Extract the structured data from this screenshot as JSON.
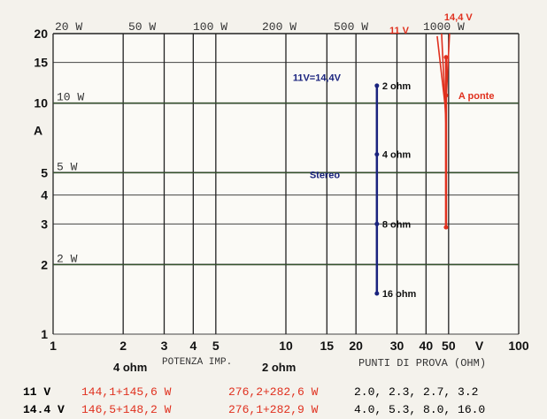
{
  "chart_data": {
    "type": "line",
    "x_scale": "log",
    "y_scale": "log",
    "xlim": [
      1,
      100
    ],
    "ylim": [
      1,
      20
    ],
    "x_ticks": [
      "1",
      "2",
      "3",
      "4",
      "5",
      "10",
      "15",
      "20",
      "30",
      "40",
      "50",
      "100"
    ],
    "x_tick_values": [
      1,
      2,
      3,
      4,
      5,
      10,
      15,
      20,
      30,
      40,
      50,
      100
    ],
    "x_unit": "V",
    "y_ticks": [
      "1",
      "2",
      "3",
      "4",
      "5",
      "10",
      "15",
      "20"
    ],
    "y_tick_values": [
      1,
      2,
      3,
      4,
      5,
      10,
      15,
      20
    ],
    "ylabel": "A",
    "power_lines": [
      {
        "label": "2 W",
        "value": 2
      },
      {
        "label": "5 W",
        "value": 5
      },
      {
        "label": "10 W",
        "value": 10
      },
      {
        "label": "20 W",
        "value": 20
      },
      {
        "label": "50 W",
        "value": 50
      },
      {
        "label": "100 W",
        "value": 100
      },
      {
        "label": "200 W",
        "value": 200
      },
      {
        "label": "500 W",
        "value": 500
      },
      {
        "label": "1000 W",
        "value": 1000
      }
    ],
    "series": [
      {
        "name": "Stereo",
        "color": "#1a237e",
        "points": [
          {
            "x": 24.6,
            "y": 11.9,
            "label": "2 ohm"
          },
          {
            "x": 24.6,
            "y": 6.0,
            "label": "4 ohm"
          },
          {
            "x": 24.6,
            "y": 3.0,
            "label": "8 ohm"
          },
          {
            "x": 24.6,
            "y": 1.5,
            "label": "16 ohm"
          }
        ]
      },
      {
        "name": "A ponte",
        "color": "#e0301e",
        "points": [
          {
            "x": 47.9,
            "y": 10.8
          },
          {
            "x": 48.5,
            "y": 15.8
          },
          {
            "x": 48.5,
            "y": 2.9
          }
        ]
      }
    ],
    "annotations": [
      {
        "text": "11V=14,4V",
        "color": "#1a237e"
      },
      {
        "text": "14,4 V",
        "color": "#e0301e"
      },
      {
        "text": "11 V",
        "color": "#e0301e"
      }
    ]
  },
  "table": {
    "headers": {
      "col1": "4 ohm",
      "potenza": "POTENZA IMP.",
      "col2": "2 ohm",
      "punti": "PUNTI DI PROVA (OHM)"
    },
    "rows": [
      {
        "label": "11 V",
        "v4": "144,1+145,6 W",
        "v2": "276,2+282,6 W",
        "punti": "2.0, 2.3, 2.7, 3.2"
      },
      {
        "label": "14.4 V",
        "v4": "146,5+148,2 W",
        "v2": "276,1+282,9 W",
        "punti": "4.0, 5.3, 8.0, 16.0"
      }
    ],
    "value_color": "#e0301e",
    "label_color": "#111111"
  }
}
